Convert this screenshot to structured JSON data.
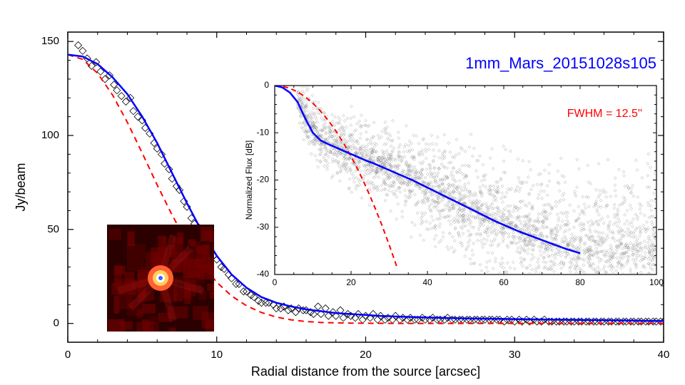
{
  "title": "1mm_Mars_20151028s105",
  "fwhm_label": "FWHM = 12.5''",
  "main_plot": {
    "type": "scatter+line",
    "xlabel": "Radial distance from the source [arcsec]",
    "ylabel": "Jy/beam",
    "xlim": [
      0,
      40
    ],
    "ylim": [
      -10,
      155
    ],
    "xticks": [
      0,
      10,
      20,
      30,
      40
    ],
    "yticks": [
      0,
      50,
      100,
      150
    ],
    "label_fontsize": 18,
    "tick_fontsize": 15,
    "background_color": "#ffffff",
    "axis_color": "#000000",
    "scatter_color": "#000000",
    "scatter_marker": "diamond",
    "scatter_size": 5,
    "line1_color": "#0000ff",
    "line1_width": 2.5,
    "line1_dash": "solid",
    "line2_color": "#ff0000",
    "line2_width": 2,
    "line2_dash": "dashed",
    "gaussian_sigma": 5.31,
    "gaussian_peak": 143,
    "blue_line": [
      [
        0,
        143
      ],
      [
        1,
        142
      ],
      [
        2,
        138
      ],
      [
        3,
        131
      ],
      [
        4,
        122
      ],
      [
        5,
        110
      ],
      [
        6,
        96
      ],
      [
        7,
        80
      ],
      [
        8,
        64
      ],
      [
        9,
        49
      ],
      [
        10,
        36
      ],
      [
        11,
        26
      ],
      [
        12,
        19
      ],
      [
        13,
        14
      ],
      [
        14,
        11
      ],
      [
        15,
        9
      ],
      [
        16,
        7.5
      ],
      [
        17,
        6.5
      ],
      [
        18,
        5.5
      ],
      [
        19,
        5
      ],
      [
        20,
        4.5
      ],
      [
        21,
        4
      ],
      [
        22,
        3.7
      ],
      [
        23,
        3.4
      ],
      [
        24,
        3.2
      ],
      [
        25,
        3
      ],
      [
        26,
        2.8
      ],
      [
        27,
        2.6
      ],
      [
        28,
        2.5
      ],
      [
        29,
        2.4
      ],
      [
        30,
        2.3
      ],
      [
        31,
        2.2
      ],
      [
        32,
        2.1
      ],
      [
        33,
        2
      ],
      [
        34,
        1.9
      ],
      [
        35,
        1.8
      ],
      [
        36,
        1.7
      ],
      [
        37,
        1.6
      ],
      [
        38,
        1.5
      ],
      [
        39,
        1.4
      ],
      [
        40,
        1.3
      ]
    ],
    "red_line": [
      [
        0,
        143
      ],
      [
        1,
        140.5
      ],
      [
        2,
        133.1
      ],
      [
        3,
        121.6
      ],
      [
        4,
        107
      ],
      [
        5,
        90.6
      ],
      [
        6,
        73.7
      ],
      [
        7,
        57.7
      ],
      [
        8,
        43.5
      ],
      [
        9,
        31.5
      ],
      [
        10,
        21.9
      ],
      [
        11,
        14.6
      ],
      [
        12,
        9.4
      ],
      [
        13,
        5.8
      ],
      [
        14,
        3.4
      ],
      [
        15,
        1.9
      ],
      [
        16,
        1.0
      ],
      [
        17,
        0.5
      ],
      [
        18,
        0.3
      ],
      [
        19,
        0.15
      ],
      [
        20,
        0.1
      ],
      [
        21,
        0.05
      ],
      [
        22,
        0.02
      ],
      [
        23,
        0.01
      ],
      [
        24,
        0.005
      ]
    ],
    "scatter_points": [
      [
        0.7,
        148
      ],
      [
        1.0,
        145
      ],
      [
        1.3,
        141
      ],
      [
        1.6,
        137
      ],
      [
        1.9,
        139
      ],
      [
        2.2,
        134
      ],
      [
        2.5,
        130
      ],
      [
        2.8,
        132
      ],
      [
        3.1,
        127
      ],
      [
        3.3,
        124
      ],
      [
        3.6,
        121
      ],
      [
        3.9,
        118
      ],
      [
        4.2,
        120
      ],
      [
        4.4,
        113
      ],
      [
        4.7,
        110
      ],
      [
        5.0,
        108
      ],
      [
        5.2,
        104
      ],
      [
        5.5,
        101
      ],
      [
        5.8,
        96
      ],
      [
        6.0,
        93
      ],
      [
        6.3,
        90
      ],
      [
        6.5,
        85
      ],
      [
        6.8,
        82
      ],
      [
        7.0,
        77
      ],
      [
        7.3,
        73
      ],
      [
        7.5,
        71
      ],
      [
        7.8,
        65
      ],
      [
        8.0,
        62
      ],
      [
        8.3,
        56
      ],
      [
        8.5,
        53
      ],
      [
        8.8,
        51
      ],
      [
        9.0,
        47
      ],
      [
        9.3,
        44
      ],
      [
        9.5,
        42
      ],
      [
        9.8,
        36
      ],
      [
        10.0,
        34
      ],
      [
        10.3,
        30
      ],
      [
        10.5,
        29
      ],
      [
        10.8,
        26
      ],
      [
        11.0,
        24
      ],
      [
        11.3,
        21
      ],
      [
        11.5,
        21
      ],
      [
        11.8,
        17
      ],
      [
        12.0,
        17
      ],
      [
        12.3,
        15
      ],
      [
        12.5,
        14
      ],
      [
        12.8,
        12
      ],
      [
        13.0,
        11
      ],
      [
        13.3,
        11
      ],
      [
        13.5,
        11
      ],
      [
        13.8,
        10
      ],
      [
        14.0,
        8
      ],
      [
        14.3,
        8
      ],
      [
        14.5,
        9
      ],
      [
        14.8,
        7
      ],
      [
        15.0,
        8
      ],
      [
        15.3,
        6
      ],
      [
        15.5,
        8
      ],
      [
        15.8,
        7
      ],
      [
        16.0,
        7
      ],
      [
        16.3,
        6
      ],
      [
        16.5,
        5
      ],
      [
        16.8,
        9
      ],
      [
        17.0,
        5
      ],
      [
        17.3,
        8
      ],
      [
        17.5,
        4
      ],
      [
        17.8,
        6
      ],
      [
        18.0,
        4
      ],
      [
        18.3,
        7
      ],
      [
        18.5,
        3
      ],
      [
        18.8,
        5
      ],
      [
        19.0,
        4
      ],
      [
        19.3,
        3
      ],
      [
        19.5,
        5
      ],
      [
        19.8,
        2
      ],
      [
        20.0,
        4
      ],
      [
        20.3,
        3
      ],
      [
        20.5,
        5
      ],
      [
        20.8,
        2
      ],
      [
        21.0,
        4
      ],
      [
        21.3,
        2
      ],
      [
        21.5,
        3
      ],
      [
        21.8,
        2
      ],
      [
        22.0,
        4
      ],
      [
        22.3,
        2
      ],
      [
        22.5,
        3
      ],
      [
        22.8,
        2
      ],
      [
        23.0,
        3
      ],
      [
        23.3,
        2
      ],
      [
        23.5,
        2
      ],
      [
        23.8,
        3
      ],
      [
        24.0,
        2
      ],
      [
        24.3,
        2
      ],
      [
        24.5,
        3
      ],
      [
        24.8,
        2
      ],
      [
        25.0,
        2
      ],
      [
        25.3,
        2
      ],
      [
        25.5,
        3
      ],
      [
        25.8,
        2
      ],
      [
        26.0,
        2
      ],
      [
        26.3,
        2
      ],
      [
        26.5,
        2
      ],
      [
        26.8,
        2
      ],
      [
        27.0,
        2
      ],
      [
        27.3,
        2
      ],
      [
        27.5,
        2
      ],
      [
        27.8,
        2
      ],
      [
        28.0,
        2
      ],
      [
        28.3,
        2
      ],
      [
        28.5,
        2
      ],
      [
        28.8,
        2
      ],
      [
        29.0,
        2
      ],
      [
        29.3,
        1
      ],
      [
        29.5,
        2
      ],
      [
        29.8,
        2
      ],
      [
        30.0,
        1
      ],
      [
        30.3,
        2
      ],
      [
        30.5,
        1
      ],
      [
        30.8,
        2
      ],
      [
        31.0,
        1
      ],
      [
        31.3,
        2
      ],
      [
        31.5,
        1
      ],
      [
        31.8,
        1
      ],
      [
        32.0,
        2
      ],
      [
        32.3,
        1
      ],
      [
        32.5,
        1
      ],
      [
        32.8,
        1
      ],
      [
        33.0,
        1
      ],
      [
        33.3,
        1
      ],
      [
        33.5,
        1
      ],
      [
        33.8,
        1
      ],
      [
        34.0,
        1
      ],
      [
        34.3,
        1
      ],
      [
        34.5,
        1
      ],
      [
        34.8,
        1
      ],
      [
        35.0,
        1
      ],
      [
        35.3,
        1
      ],
      [
        35.5,
        1
      ],
      [
        35.8,
        1
      ],
      [
        36.0,
        1
      ],
      [
        36.3,
        1
      ],
      [
        36.5,
        1
      ],
      [
        36.8,
        1
      ],
      [
        37.0,
        1
      ],
      [
        37.3,
        1
      ],
      [
        37.5,
        1
      ],
      [
        37.8,
        1
      ],
      [
        38.0,
        1
      ],
      [
        38.3,
        1
      ],
      [
        38.5,
        1
      ],
      [
        38.8,
        1
      ],
      [
        39.0,
        1
      ],
      [
        39.3,
        1
      ],
      [
        39.5,
        1
      ],
      [
        39.8,
        1
      ],
      [
        40.0,
        1
      ]
    ]
  },
  "inset_plot": {
    "type": "scatter+line",
    "ylabel": "Normalized Flux [dB]",
    "xlim": [
      0,
      100
    ],
    "ylim": [
      -40,
      0
    ],
    "xticks": [
      0,
      20,
      40,
      60,
      80,
      100
    ],
    "yticks": [
      -40,
      -30,
      -20,
      -10,
      0
    ],
    "scatter_color": "#808080",
    "scatter_size": 2,
    "line1_color": "#0000ff",
    "line1_width": 2.5,
    "line2_color": "#ff0000",
    "line2_width": 2,
    "line2_dash": "dashed",
    "blue_line": [
      [
        0,
        0
      ],
      [
        2,
        -0.4
      ],
      [
        4,
        -1.5
      ],
      [
        6,
        -3.5
      ],
      [
        8,
        -7.0
      ],
      [
        10,
        -10.0
      ],
      [
        12,
        -11.6
      ],
      [
        14,
        -12.4
      ],
      [
        16,
        -13.1
      ],
      [
        18,
        -13.8
      ],
      [
        20,
        -14.5
      ],
      [
        22,
        -15.2
      ],
      [
        24,
        -15.9
      ],
      [
        26,
        -16.5
      ],
      [
        28,
        -17.2
      ],
      [
        30,
        -17.9
      ],
      [
        32,
        -18.6
      ],
      [
        34,
        -19.3
      ],
      [
        36,
        -20.0
      ],
      [
        38,
        -20.8
      ],
      [
        40,
        -21.6
      ],
      [
        42,
        -22.4
      ],
      [
        44,
        -23.2
      ],
      [
        46,
        -24.0
      ],
      [
        48,
        -24.8
      ],
      [
        50,
        -25.6
      ],
      [
        52,
        -26.4
      ],
      [
        54,
        -27.2
      ],
      [
        56,
        -28.0
      ],
      [
        58,
        -28.8
      ],
      [
        60,
        -29.5
      ],
      [
        62,
        -30.2
      ],
      [
        64,
        -30.9
      ],
      [
        66,
        -31.5
      ],
      [
        68,
        -32.1
      ],
      [
        70,
        -32.7
      ],
      [
        72,
        -33.3
      ],
      [
        74,
        -33.9
      ],
      [
        76,
        -34.5
      ],
      [
        78,
        -35.0
      ],
      [
        80,
        -35.5
      ]
    ],
    "red_line": [
      [
        0,
        0
      ],
      [
        2,
        -0.15
      ],
      [
        4,
        -0.6
      ],
      [
        6,
        -1.35
      ],
      [
        8,
        -2.4
      ],
      [
        10,
        -3.75
      ],
      [
        12,
        -5.4
      ],
      [
        14,
        -7.35
      ],
      [
        16,
        -9.6
      ],
      [
        18,
        -12.15
      ],
      [
        20,
        -15.0
      ],
      [
        22,
        -18.15
      ],
      [
        24,
        -21.6
      ],
      [
        26,
        -25.35
      ],
      [
        28,
        -29.4
      ],
      [
        30,
        -33.75
      ],
      [
        32,
        -38.4
      ]
    ],
    "scatter_density_params": {
      "n_points": 3000,
      "band_top_offset": 2,
      "band_bottom_offset": -6
    }
  },
  "inset_image": {
    "colors": {
      "bg": "#2a0000",
      "mid": "#700000",
      "bright": "#a01010",
      "core_outer": "#ff6030",
      "core_mid": "#ffd060",
      "core_inner": "#ffffff",
      "center_dot": "#4060ff"
    }
  }
}
